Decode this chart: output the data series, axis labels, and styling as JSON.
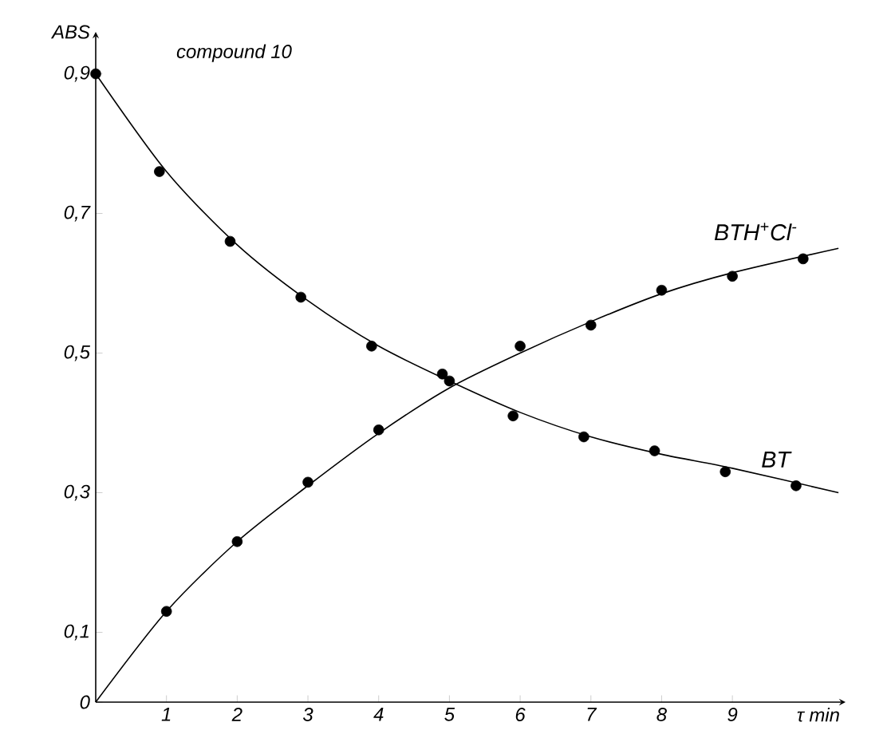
{
  "chart_data": {
    "type": "scatter",
    "ylabel": "ABS",
    "xlabel": "τ min",
    "annotations": [
      "compound 10"
    ],
    "xlim": [
      0,
      10.6
    ],
    "ylim": [
      0,
      0.96
    ],
    "xticks": [
      1,
      2,
      3,
      4,
      5,
      6,
      7,
      8,
      9
    ],
    "yticks": [
      {
        "value": 0,
        "label": "0"
      },
      {
        "value": 0.1,
        "label": "0,1"
      },
      {
        "value": 0.3,
        "label": "0,3"
      },
      {
        "value": 0.5,
        "label": "0,5"
      },
      {
        "value": 0.7,
        "label": "0,7"
      },
      {
        "value": 0.9,
        "label": "0,9"
      }
    ],
    "grid": false,
    "legend": false,
    "marker": "circle",
    "series": [
      {
        "name": "BTH$^{+}$Cl$^{-}$",
        "color": "#000000",
        "x": [
          1,
          2,
          3,
          4,
          5,
          6,
          7,
          8,
          9,
          10
        ],
        "values": [
          0.13,
          0.23,
          0.315,
          0.39,
          0.46,
          0.51,
          0.54,
          0.59,
          0.61,
          0.635
        ]
      },
      {
        "name": "BT",
        "color": "#000000",
        "x": [
          0,
          0.9,
          1.9,
          2.9,
          3.9,
          4.9,
          5.9,
          6.9,
          7.9,
          8.9,
          9.9
        ],
        "values": [
          0.9,
          0.76,
          0.66,
          0.58,
          0.51,
          0.47,
          0.41,
          0.38,
          0.36,
          0.33,
          0.31
        ]
      },
      {
        "type": "line",
        "color": "#000000",
        "marker": "none",
        "x": [
          0,
          1,
          2,
          3,
          4,
          5,
          6,
          7,
          8,
          9,
          10.5
        ],
        "values": [
          0,
          0.13,
          0.23,
          0.31,
          0.385,
          0.45,
          0.5,
          0.545,
          0.585,
          0.615,
          0.65
        ]
      },
      {
        "type": "line",
        "color": "#000000",
        "marker": "none",
        "x": [
          0,
          1,
          2,
          3,
          4,
          5,
          6,
          7,
          8,
          9,
          10.5
        ],
        "values": [
          0.9,
          0.76,
          0.655,
          0.575,
          0.51,
          0.46,
          0.415,
          0.38,
          0.355,
          0.335,
          0.3
        ]
      }
    ]
  }
}
